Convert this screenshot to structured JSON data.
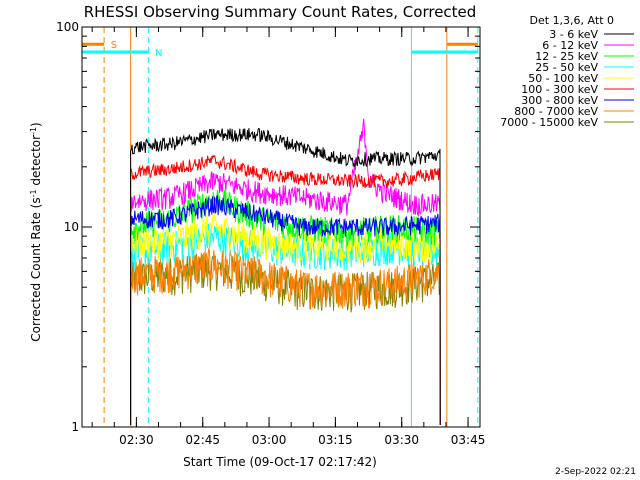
{
  "chart_data": {
    "type": "line",
    "title": "RHESSI Observing Summary Count Rates, Corrected",
    "xlabel": "Start Time (09-Oct-17 02:17:42)",
    "ylabel_main": "Corrected Count Rate (s",
    "ylabel_sup1": "-1",
    "ylabel_mid": " detector",
    "ylabel_sup2": "-1",
    "ylabel_end": ")",
    "y_scale": "log",
    "ylim": [
      1,
      100
    ],
    "xlim_minutes": [
      0,
      90
    ],
    "y_ticks": [
      {
        "value": 1,
        "label": "1"
      },
      {
        "value": 10,
        "label": "10"
      },
      {
        "value": 100,
        "label": "100"
      }
    ],
    "x_ticks": [
      {
        "minute": 12.3,
        "label": "02:30"
      },
      {
        "minute": 27.3,
        "label": "02:45"
      },
      {
        "minute": 42.3,
        "label": "03:00"
      },
      {
        "minute": 57.3,
        "label": "03:15"
      },
      {
        "minute": 72.3,
        "label": "03:30"
      },
      {
        "minute": 87.3,
        "label": "03:45"
      }
    ],
    "legend_header": "Det 1,3,6, Att 0",
    "legend_placement": "right",
    "series": [
      {
        "name": "3 - 6 keV",
        "color": "#000000",
        "noise": 0.05,
        "minutes": [
          11,
          20,
          30,
          40,
          50,
          60,
          65,
          75,
          81
        ],
        "values": [
          25,
          26,
          29,
          29,
          25,
          21.5,
          22,
          22,
          23
        ]
      },
      {
        "name": "6 - 12 keV",
        "color": "#ff00ff",
        "noise": 0.08,
        "minutes": [
          11,
          20,
          30,
          40,
          50,
          60,
          63.8,
          65,
          68,
          75,
          81
        ],
        "values": [
          13.5,
          14,
          17,
          15,
          14,
          13,
          32,
          17,
          15,
          13,
          13
        ]
      },
      {
        "name": "12 - 25 keV",
        "color": "#00ff00",
        "noise": 0.1,
        "minutes": [
          11,
          20,
          30,
          40,
          50,
          60,
          70,
          81
        ],
        "values": [
          10,
          11,
          14,
          11,
          10,
          9.5,
          10,
          9.5
        ]
      },
      {
        "name": "25 - 50 keV",
        "color": "#00ffff",
        "noise": 0.12,
        "minutes": [
          11,
          20,
          30,
          40,
          50,
          60,
          70,
          81
        ],
        "values": [
          7.5,
          8,
          9,
          8,
          7.5,
          7.5,
          8,
          7.5
        ]
      },
      {
        "name": "50 - 100 keV",
        "color": "#ffff00",
        "noise": 0.12,
        "minutes": [
          11,
          20,
          30,
          40,
          50,
          60,
          70,
          81
        ],
        "values": [
          8.5,
          8.5,
          10,
          8.5,
          8,
          8,
          8.5,
          8
        ]
      },
      {
        "name": "100 - 300 keV",
        "color": "#ff0000",
        "noise": 0.05,
        "minutes": [
          11,
          20,
          30,
          40,
          50,
          60,
          70,
          81
        ],
        "values": [
          18.5,
          19.5,
          21.5,
          18.5,
          17.5,
          17,
          17,
          18.5
        ]
      },
      {
        "name": "300 - 800 keV",
        "color": "#0000ff",
        "noise": 0.07,
        "minutes": [
          11,
          20,
          30,
          40,
          50,
          60,
          70,
          81
        ],
        "values": [
          11,
          11,
          13,
          11.5,
          10,
          10,
          10,
          10.5
        ]
      },
      {
        "name": "800 - 7000 keV",
        "color": "#ff8000",
        "noise": 0.14,
        "minutes": [
          11,
          20,
          30,
          40,
          50,
          60,
          70,
          81
        ],
        "values": [
          5.8,
          6,
          6.5,
          5.8,
          5,
          5,
          5.2,
          6
        ]
      },
      {
        "name": "7000 - 15000 keV",
        "color": "#808000",
        "noise": 0.14,
        "minutes": [
          11,
          20,
          30,
          40,
          50,
          60,
          70,
          81
        ],
        "values": [
          5.5,
          5.8,
          6.2,
          5.5,
          4.8,
          4.8,
          5,
          5.5
        ]
      }
    ],
    "data_span_minutes": [
      11,
      81
    ],
    "vertical_lines": [
      {
        "minute": 5.0,
        "color": "#ff8000",
        "style": "dashed"
      },
      {
        "minute": 11.0,
        "color": "#ff8000",
        "style": "solid"
      },
      {
        "minute": 15.0,
        "color": "#00ffff",
        "style": "dashed"
      },
      {
        "minute": 74.5,
        "color": "#00ffff",
        "style": "solid"
      },
      {
        "minute": 82.5,
        "color": "#ff8000",
        "style": "solid"
      },
      {
        "minute": 89.5,
        "color": "#00ffff",
        "style": "dashed"
      }
    ],
    "top_markers": [
      {
        "label": "S",
        "color": "#ff8000",
        "y_value": 82,
        "bars_minutes": [
          [
            0,
            5
          ],
          [
            82.5,
            89.5
          ]
        ],
        "label_minute": 6.5
      },
      {
        "label": "N",
        "color": "#00ffff",
        "y_value": 75,
        "bars_minutes": [
          [
            0,
            15
          ],
          [
            74.5,
            89.5
          ]
        ],
        "label_minute": 16.5
      }
    ]
  },
  "footer_timestamp": "2-Sep-2022 02:21"
}
